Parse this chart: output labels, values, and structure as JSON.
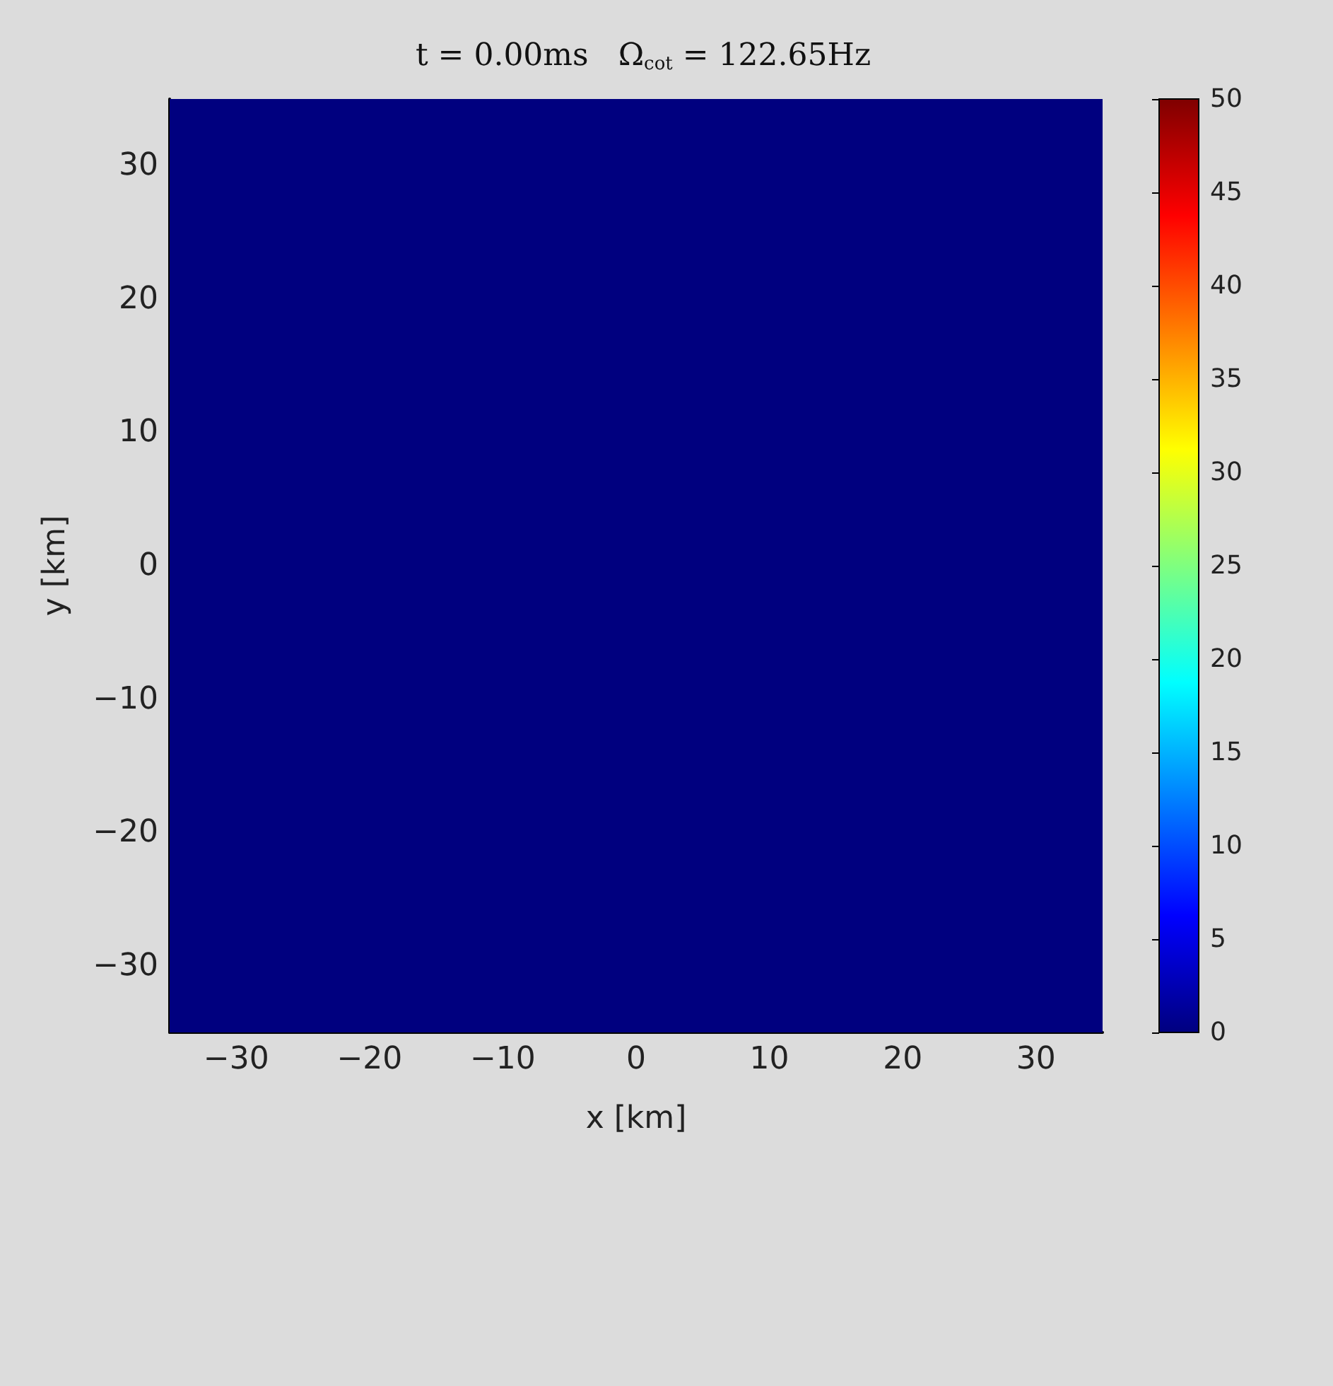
{
  "chart_data": {
    "type": "heatmap",
    "title": "t = 0.00ms   Ω$_{cot}$ = 122.65Hz",
    "xlabel": "x [km]",
    "ylabel": "y [km]",
    "xlim": [
      -35,
      35
    ],
    "ylim": [
      -35,
      35
    ],
    "xticks": [
      -30,
      -20,
      -10,
      0,
      10,
      20,
      30
    ],
    "yticks": [
      -30,
      -20,
      -10,
      0,
      10,
      20,
      30
    ],
    "cells": [
      [
        0
      ]
    ],
    "clim": [
      0,
      50
    ],
    "cticks": [
      0,
      5,
      10,
      15,
      20,
      25,
      30,
      35,
      40,
      45,
      50
    ]
  }
}
